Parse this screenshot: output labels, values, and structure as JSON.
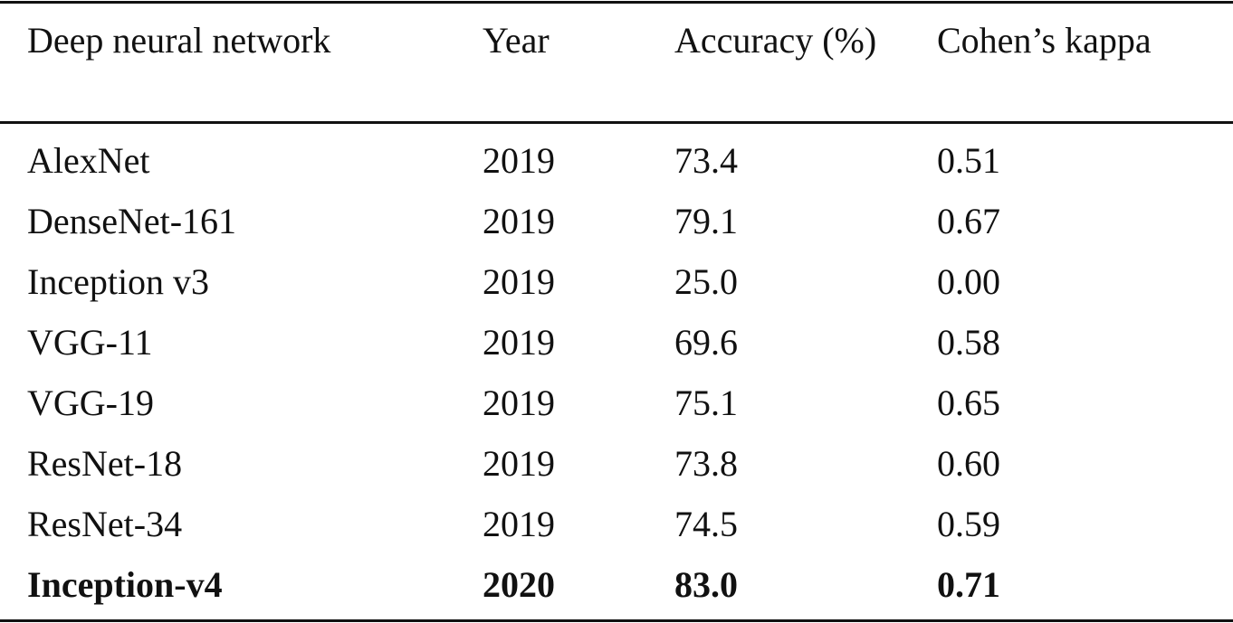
{
  "table": {
    "header": [
      "Deep neural network",
      "Year",
      "Accuracy (%)",
      "Cohen’s kappa"
    ],
    "rows": [
      [
        "AlexNet",
        "2019",
        "73.4",
        "0.51"
      ],
      [
        "DenseNet-161",
        "2019",
        "79.1",
        "0.67"
      ],
      [
        "Inception v3",
        "2019",
        "25.0",
        "0.00"
      ],
      [
        "VGG-11",
        "2019",
        "69.6",
        "0.58"
      ],
      [
        "VGG-19",
        "2019",
        "75.1",
        "0.65"
      ],
      [
        "ResNet-18",
        "2019",
        "73.8",
        "0.60"
      ],
      [
        "ResNet-34",
        "2019",
        "74.5",
        "0.59"
      ],
      [
        "Inception-v4",
        "2020",
        "83.0",
        "0.71"
      ]
    ]
  }
}
